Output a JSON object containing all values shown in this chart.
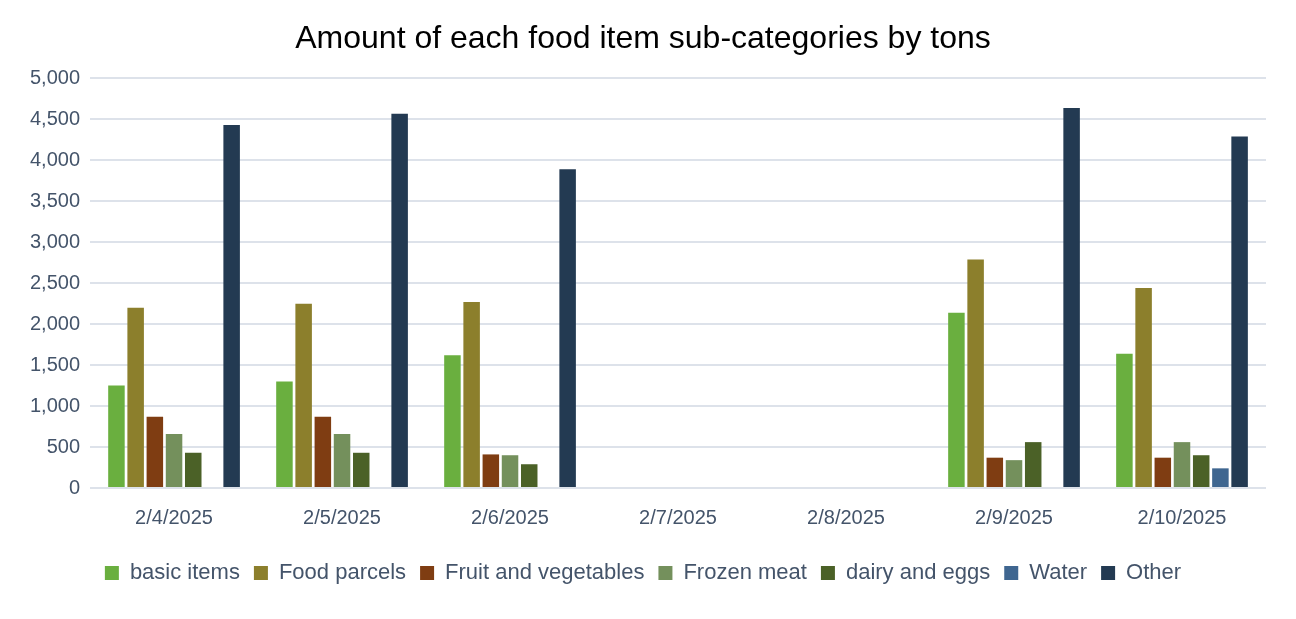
{
  "chart_data": {
    "type": "bar",
    "title": "Amount of each food item sub-categories by tons",
    "categories": [
      "2/4/2025",
      "2/5/2025",
      "2/6/2025",
      "2/7/2025",
      "2/8/2025",
      "2/9/2025",
      "2/10/2025"
    ],
    "series": [
      {
        "name": "basic items",
        "color": "#6aaf3f",
        "values": [
          1250,
          1300,
          1620,
          null,
          null,
          2140,
          1640
        ]
      },
      {
        "name": "Food parcels",
        "color": "#8c7f2c",
        "values": [
          2200,
          2250,
          2270,
          null,
          null,
          2790,
          2440
        ]
      },
      {
        "name": "Fruit and vegetables",
        "color": "#7f3d12",
        "values": [
          870,
          870,
          410,
          null,
          null,
          370,
          370
        ]
      },
      {
        "name": "Frozen meat",
        "color": "#74905c",
        "values": [
          660,
          660,
          400,
          null,
          null,
          340,
          560
        ]
      },
      {
        "name": "dairy and eggs",
        "color": "#4b6127",
        "values": [
          430,
          430,
          290,
          null,
          null,
          560,
          400
        ]
      },
      {
        "name": "Water",
        "color": "#3f6690",
        "values": [
          null,
          null,
          null,
          null,
          null,
          null,
          240
        ]
      },
      {
        "name": "Other",
        "color": "#233a52",
        "values": [
          4430,
          4570,
          3890,
          null,
          null,
          4640,
          4290
        ]
      }
    ],
    "ylim": [
      0,
      5000
    ],
    "yticks": [
      0,
      500,
      {
        "value": 1000,
        "label": "1,000"
      },
      {
        "value": 1500,
        "label": "1,500"
      },
      {
        "value": 2000,
        "label": "2,000"
      },
      {
        "value": 2500,
        "label": "2,500"
      },
      {
        "value": 3000,
        "label": "3,000"
      },
      {
        "value": 3500,
        "label": "3,500"
      },
      {
        "value": 4000,
        "label": "4,000"
      },
      {
        "value": 4500,
        "label": "4,500"
      },
      {
        "value": 5000,
        "label": "5,000"
      }
    ],
    "grid": "y",
    "legend": "bottom"
  }
}
